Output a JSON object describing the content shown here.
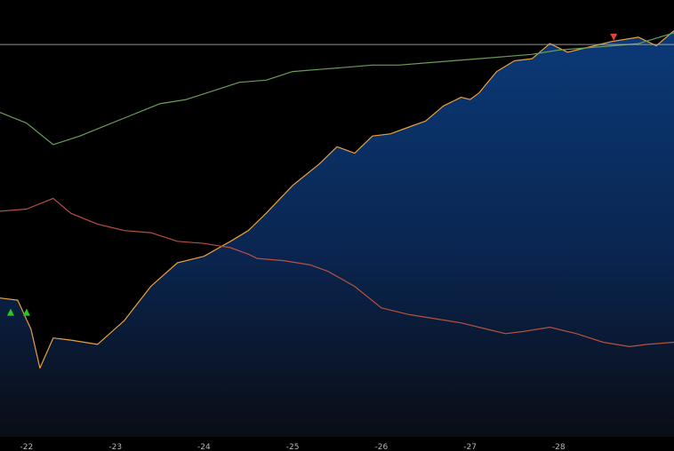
{
  "chart_data": {
    "type": "line",
    "title": "",
    "xlabel": "",
    "ylabel": "",
    "grid": false,
    "x_ticks": [
      "-22",
      "-23",
      "-24",
      "-25",
      "-26",
      "-27",
      "-28"
    ],
    "x_tick_days": [
      22,
      23,
      24,
      25,
      26,
      27,
      28
    ],
    "xlim": [
      21.7,
      29.3
    ],
    "ylim": [
      0,
      100
    ],
    "reference_line": 91.3,
    "colors": {
      "background": "#000000",
      "area_top": "#0b3a78",
      "area_bottom": "#0a0d14",
      "price_line": "#e8a040",
      "green_line": "#6a9e58",
      "red_line": "#b85040",
      "reference_line": "#b8b8b8",
      "buy_marker": "#22cc22",
      "sell_marker": "#e04040",
      "tick_label": "#b8b8b8"
    },
    "series": [
      {
        "role": "price-area",
        "x": [
          21.7,
          21.9,
          22.05,
          22.15,
          22.3,
          22.5,
          22.8,
          23.1,
          23.4,
          23.7,
          24.0,
          24.3,
          24.5,
          24.7,
          25.0,
          25.3,
          25.5,
          25.7,
          25.9,
          26.1,
          26.3,
          26.5,
          26.7,
          26.9,
          27.0,
          27.1,
          27.3,
          27.5,
          27.7,
          27.9,
          28.1,
          28.3,
          28.6,
          28.9,
          29.1,
          29.3
        ],
        "y": [
          32.3,
          31.8,
          25.0,
          16.0,
          23.0,
          22.5,
          21.5,
          27.0,
          35.0,
          40.5,
          42.0,
          45.5,
          48.0,
          52.0,
          58.5,
          63.5,
          67.5,
          66.0,
          70.0,
          70.5,
          72.0,
          73.5,
          77.0,
          79.0,
          78.5,
          80.0,
          85.0,
          87.5,
          88.0,
          91.5,
          89.5,
          90.5,
          92.0,
          93.0,
          91.0,
          94.5
        ]
      },
      {
        "role": "green-line",
        "x": [
          21.7,
          22.0,
          22.3,
          22.6,
          22.9,
          23.2,
          23.5,
          23.8,
          24.1,
          24.4,
          24.7,
          25.0,
          25.3,
          25.6,
          25.9,
          26.2,
          26.5,
          26.8,
          27.1,
          27.4,
          27.7,
          28.0,
          28.3,
          28.6,
          28.9,
          29.3
        ],
        "y": [
          75.5,
          73.0,
          68.0,
          70.0,
          72.5,
          75.0,
          77.5,
          78.5,
          80.5,
          82.5,
          83.0,
          85.0,
          85.5,
          86.0,
          86.5,
          86.5,
          87.0,
          87.5,
          88.0,
          88.5,
          89.0,
          90.0,
          90.5,
          91.0,
          91.5,
          94.0
        ]
      },
      {
        "role": "red-line",
        "x": [
          21.7,
          22.0,
          22.3,
          22.5,
          22.8,
          23.1,
          23.4,
          23.7,
          24.0,
          24.3,
          24.5,
          24.6,
          24.9,
          25.2,
          25.4,
          25.7,
          26.0,
          26.3,
          26.6,
          26.9,
          27.2,
          27.4,
          27.6,
          27.9,
          28.2,
          28.5,
          28.8,
          29.0,
          29.3
        ],
        "y": [
          52.5,
          53.0,
          55.5,
          52.0,
          49.5,
          48.0,
          47.5,
          45.5,
          45.0,
          44.0,
          42.5,
          41.5,
          41.0,
          40.0,
          38.5,
          35.0,
          30.0,
          28.5,
          27.5,
          26.5,
          25.0,
          24.0,
          24.5,
          25.5,
          24.0,
          22.0,
          21.0,
          21.5,
          22.0
        ]
      }
    ],
    "markers": [
      {
        "kind": "buy",
        "x": 21.82,
        "y": 29.0
      },
      {
        "kind": "buy",
        "x": 22.0,
        "y": 29.0
      },
      {
        "kind": "sell",
        "x": 28.62,
        "y": 93.0
      }
    ]
  }
}
